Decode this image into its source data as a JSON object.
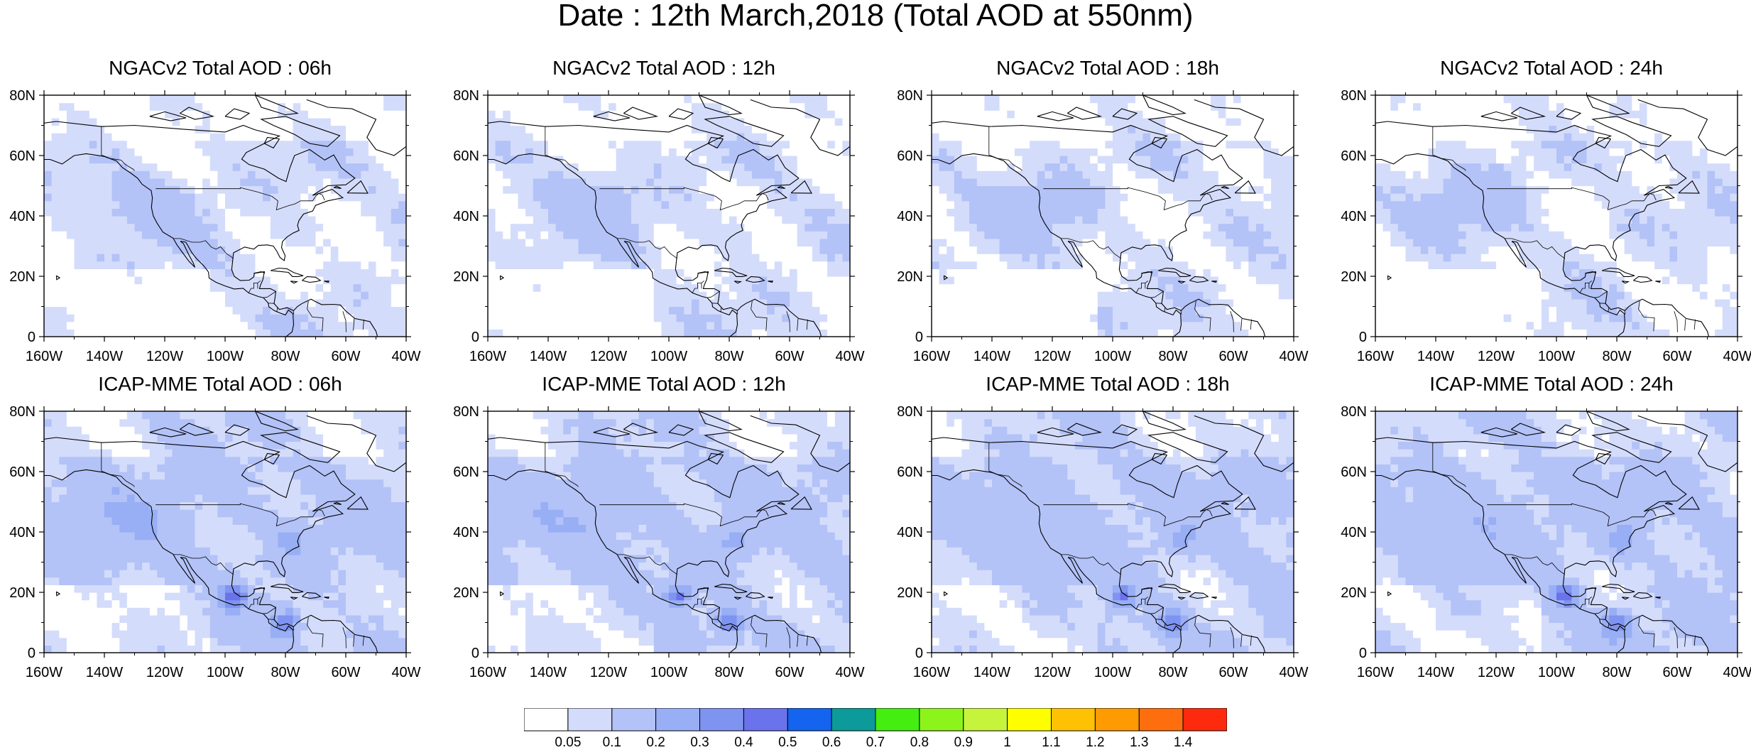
{
  "title": "Date : 12th March,2018 (Total AOD at 550nm)",
  "panels": [
    {
      "title": "NGACv2 Total AOD : 06h",
      "model": "ngac",
      "seed": 1
    },
    {
      "title": "NGACv2 Total AOD : 12h",
      "model": "ngac",
      "seed": 2
    },
    {
      "title": "NGACv2 Total AOD : 18h",
      "model": "ngac",
      "seed": 3
    },
    {
      "title": "NGACv2 Total AOD : 24h",
      "model": "ngac",
      "seed": 4
    },
    {
      "title": "ICAP-MME Total AOD : 06h",
      "model": "icap",
      "seed": 5
    },
    {
      "title": "ICAP-MME Total AOD : 12h",
      "model": "icap",
      "seed": 6
    },
    {
      "title": "ICAP-MME Total AOD : 18h",
      "model": "icap",
      "seed": 7
    },
    {
      "title": "ICAP-MME Total AOD : 24h",
      "model": "icap",
      "seed": 8
    }
  ],
  "lat_ticks": [
    "0",
    "20N",
    "40N",
    "60N",
    "80N"
  ],
  "lat_values": [
    0,
    20,
    40,
    60,
    80
  ],
  "lon_ticks": [
    "160W",
    "140W",
    "120W",
    "100W",
    "80W",
    "60W",
    "40W"
  ],
  "lon_values": [
    -160,
    -140,
    -120,
    -100,
    -80,
    -60,
    -40
  ],
  "extent": {
    "lon": [
      -160,
      -40
    ],
    "lat": [
      0,
      80
    ]
  },
  "colorbar": {
    "labels": [
      "0.05",
      "0.1",
      "0.2",
      "0.3",
      "0.4",
      "0.5",
      "0.6",
      "0.7",
      "0.8",
      "0.9",
      "1",
      "1.1",
      "1.2",
      "1.3",
      "1.4"
    ],
    "colors": [
      "#ffffff",
      "#d4dcfb",
      "#b3c2f7",
      "#98aef5",
      "#7f93f0",
      "#6a72ec",
      "#1464f0",
      "#0c9a9a",
      "#44ee11",
      "#8cf41a",
      "#c6f33c",
      "#fefe00",
      "#fec104",
      "#fe9a02",
      "#fe6e0e",
      "#fe2a0e"
    ]
  }
}
